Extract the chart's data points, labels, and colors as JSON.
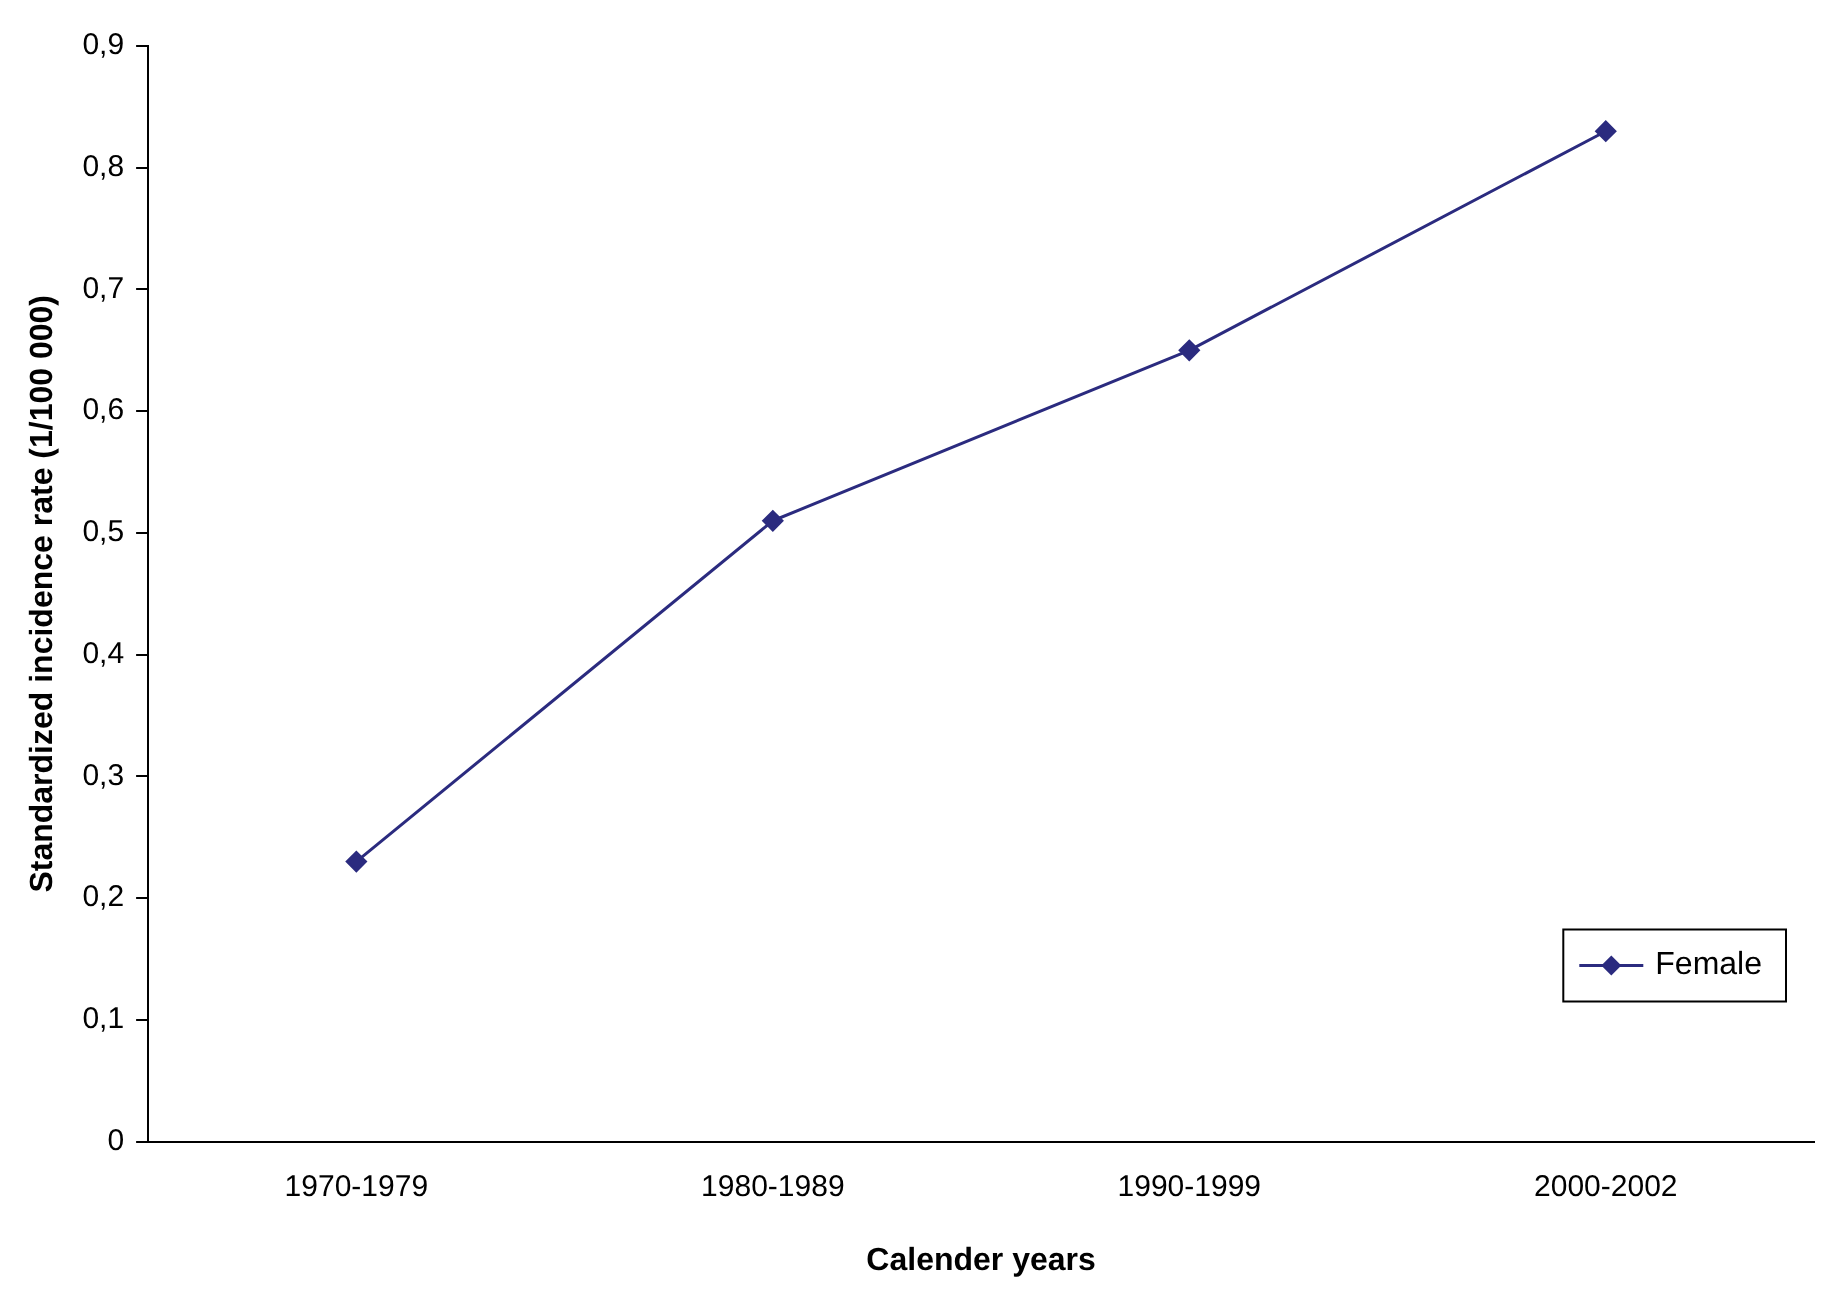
{
  "chart_data": {
    "type": "line",
    "xlabel": "Calender years",
    "ylabel": "Standardized incidence rate (1/100 000)",
    "categories": [
      "1970-1979",
      "1980-1989",
      "1990-1999",
      "2000-2002"
    ],
    "series": [
      {
        "name": "Female",
        "color": "#2b2b7f",
        "values": [
          0.23,
          0.51,
          0.65,
          0.83
        ]
      }
    ],
    "ylim": [
      0,
      0.9
    ],
    "yticks": [
      {
        "value": 0,
        "label": "0"
      },
      {
        "value": 0.1,
        "label": "0,1"
      },
      {
        "value": 0.2,
        "label": "0,2"
      },
      {
        "value": 0.3,
        "label": "0,3"
      },
      {
        "value": 0.4,
        "label": "0,4"
      },
      {
        "value": 0.5,
        "label": "0,5"
      },
      {
        "value": 0.6,
        "label": "0,6"
      },
      {
        "value": 0.7,
        "label": "0,7"
      },
      {
        "value": 0.8,
        "label": "0,8"
      },
      {
        "value": 0.9,
        "label": "0,9"
      }
    ],
    "grid": false,
    "legend": "bottom right",
    "marker": "diamond",
    "line_style": "solid"
  }
}
